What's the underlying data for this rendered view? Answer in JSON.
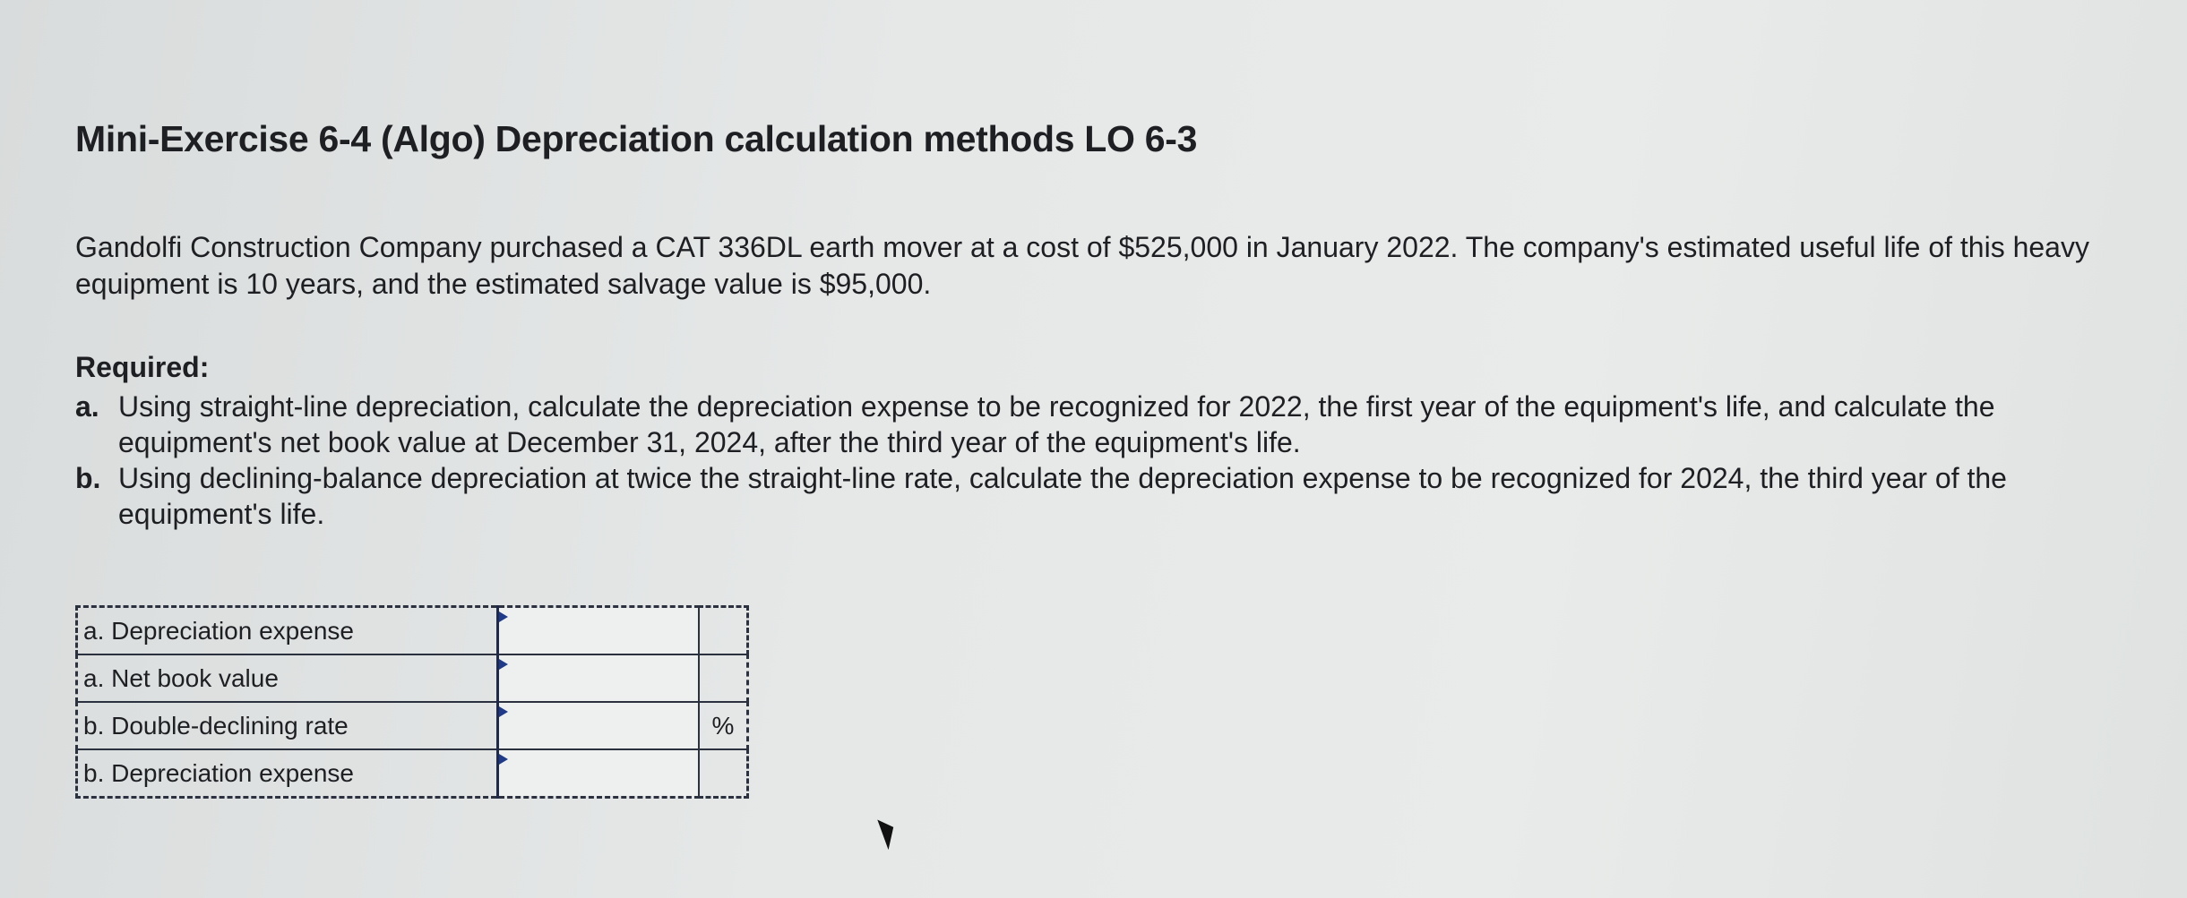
{
  "title": "Mini-Exercise 6-4 (Algo) Depreciation calculation methods LO 6-3",
  "intro": "Gandolfi Construction Company purchased a CAT 336DL earth mover at a cost of $525,000 in January 2022. The company's estimated useful life of this heavy equipment is 10 years, and the estimated salvage value is $95,000.",
  "required_label": "Required:",
  "requirements": [
    {
      "letter": "a.",
      "text": "Using straight-line depreciation, calculate the depreciation expense to be recognized for 2022, the first year of the equipment's life, and calculate the equipment's net book value at December 31, 2024, after the third year of the equipment's life."
    },
    {
      "letter": "b.",
      "text": "Using declining-balance depreciation at twice the straight-line rate, calculate the depreciation expense to be recognized for 2024, the third year of the equipment's life."
    }
  ],
  "table": {
    "rows": [
      {
        "label": "a. Depreciation expense",
        "value": "",
        "unit": ""
      },
      {
        "label": "a. Net book value",
        "value": "",
        "unit": ""
      },
      {
        "label": "b. Double-declining rate",
        "value": "",
        "unit": "%"
      },
      {
        "label": "b. Depreciation expense",
        "value": "",
        "unit": ""
      }
    ]
  }
}
